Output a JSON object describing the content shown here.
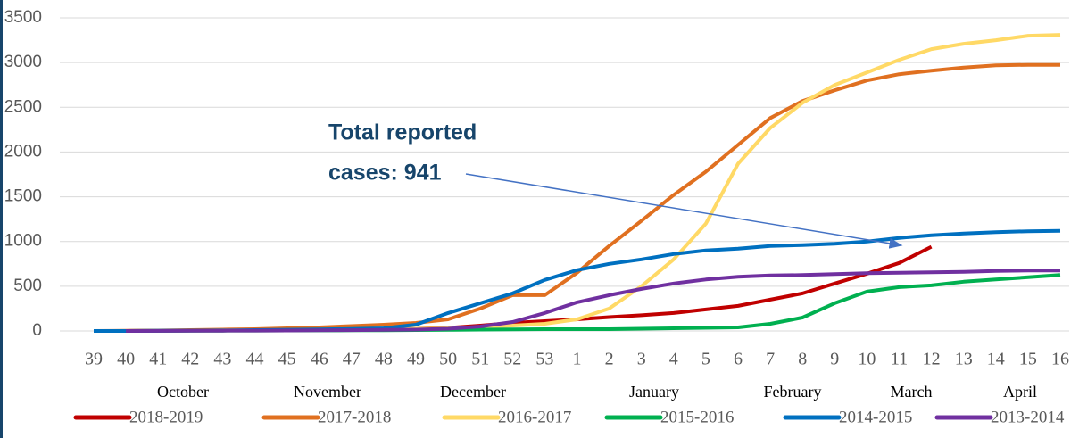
{
  "chart_data": {
    "type": "line",
    "categories": [
      "39",
      "40",
      "41",
      "42",
      "43",
      "44",
      "45",
      "46",
      "47",
      "48",
      "49",
      "50",
      "51",
      "52",
      "53",
      "1",
      "2",
      "3",
      "4",
      "5",
      "6",
      "7",
      "8",
      "9",
      "10",
      "11",
      "12",
      "13",
      "14",
      "15",
      "16"
    ],
    "month_labels": [
      "October",
      "November",
      "December",
      "January",
      "February",
      "March",
      "April"
    ],
    "annotation": [
      "Total reported",
      "cases: 941"
    ],
    "ylim": [
      0,
      3500
    ],
    "yticks": [
      0,
      500,
      1000,
      1500,
      2000,
      2500,
      3000,
      3500
    ],
    "grid": true,
    "series": [
      {
        "name": "2018-2019",
        "color": "#c00000",
        "values": [
          null,
          0,
          2,
          5,
          8,
          10,
          12,
          15,
          18,
          20,
          25,
          35,
          60,
          90,
          110,
          130,
          155,
          175,
          200,
          240,
          280,
          350,
          420,
          530,
          640,
          760,
          941,
          null,
          null,
          null,
          null
        ]
      },
      {
        "name": "2017-2018",
        "color": "#e07020",
        "values": [
          0,
          2,
          5,
          10,
          15,
          20,
          30,
          40,
          55,
          70,
          90,
          130,
          250,
          400,
          400,
          650,
          950,
          1230,
          1520,
          1780,
          2080,
          2380,
          2570,
          2690,
          2800,
          2870,
          2910,
          2945,
          2970,
          2975,
          2975
        ]
      },
      {
        "name": "2016-2017",
        "color": "#ffd966",
        "values": [
          0,
          0,
          2,
          4,
          6,
          8,
          10,
          12,
          15,
          20,
          25,
          30,
          40,
          60,
          80,
          130,
          250,
          500,
          800,
          1200,
          1870,
          2270,
          2550,
          2750,
          2890,
          3030,
          3150,
          3210,
          3250,
          3300,
          3310
        ]
      },
      {
        "name": "2015-2016",
        "color": "#00b050",
        "values": [
          0,
          0,
          1,
          2,
          3,
          4,
          5,
          6,
          7,
          8,
          10,
          12,
          15,
          18,
          20,
          20,
          20,
          25,
          30,
          35,
          40,
          80,
          150,
          310,
          440,
          490,
          510,
          550,
          575,
          600,
          625
        ]
      },
      {
        "name": "2014-2015",
        "color": "#0070c0",
        "values": [
          0,
          0,
          2,
          4,
          6,
          10,
          14,
          18,
          22,
          30,
          70,
          200,
          310,
          420,
          570,
          680,
          750,
          800,
          860,
          900,
          920,
          950,
          960,
          975,
          1000,
          1040,
          1070,
          1090,
          1105,
          1115,
          1120
        ]
      },
      {
        "name": "2013-2014",
        "color": "#7030a0",
        "values": [
          null,
          0,
          1,
          2,
          3,
          4,
          5,
          7,
          9,
          12,
          15,
          25,
          50,
          100,
          200,
          320,
          400,
          470,
          530,
          575,
          605,
          620,
          625,
          635,
          645,
          650,
          655,
          660,
          670,
          675,
          675
        ]
      }
    ]
  }
}
